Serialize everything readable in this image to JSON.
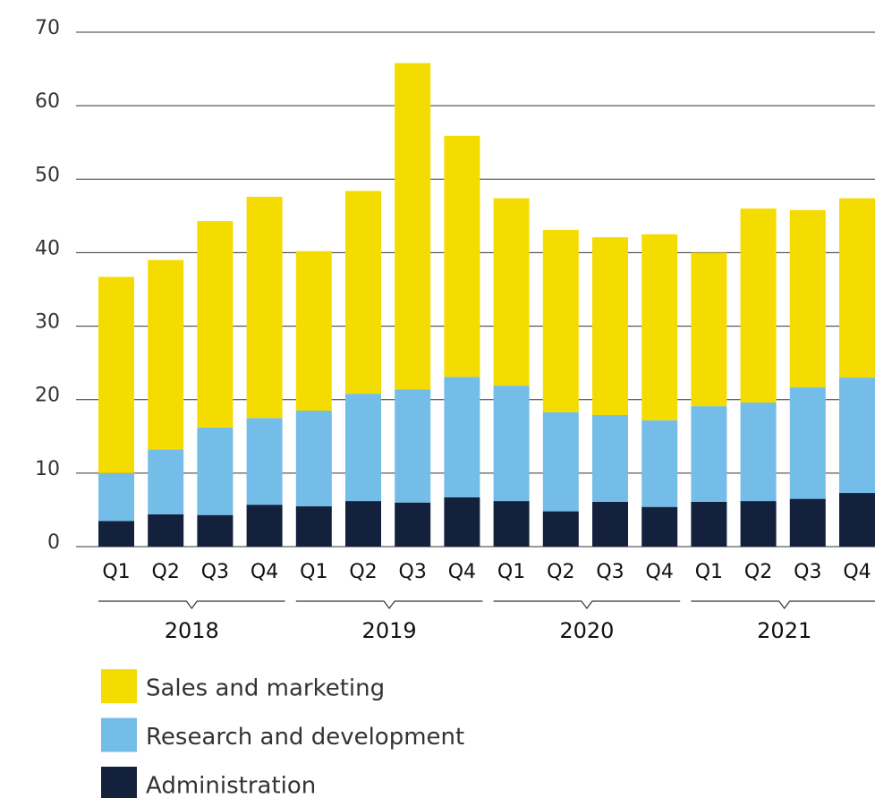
{
  "chart_data": {
    "type": "stacked_bar",
    "categories": [
      "Q1",
      "Q2",
      "Q3",
      "Q4",
      "Q1",
      "Q2",
      "Q3",
      "Q4",
      "Q1",
      "Q2",
      "Q3",
      "Q4",
      "Q1",
      "Q2",
      "Q3",
      "Q4"
    ],
    "x_groups": [
      "2018",
      "2019",
      "2020",
      "2021"
    ],
    "series": [
      {
        "name": "Administration",
        "color": "#14213d",
        "values": [
          3.5,
          4.4,
          4.3,
          5.7,
          5.5,
          6.2,
          6.0,
          6.7,
          6.2,
          4.8,
          6.1,
          5.4,
          6.1,
          6.2,
          6.5,
          7.3
        ]
      },
      {
        "name": "Research and development",
        "color": "#74bde8",
        "values": [
          6.5,
          8.8,
          11.9,
          11.8,
          13.0,
          14.6,
          15.4,
          16.4,
          15.7,
          13.5,
          11.8,
          11.8,
          13.0,
          13.4,
          15.2,
          15.7
        ]
      },
      {
        "name": "Sales and marketing",
        "color": "#f5dc00",
        "values": [
          26.7,
          25.8,
          28.1,
          30.1,
          21.7,
          27.6,
          44.4,
          32.8,
          25.5,
          24.8,
          24.2,
          25.3,
          20.9,
          26.4,
          24.1,
          24.4
        ]
      }
    ],
    "ylim": [
      0,
      70
    ],
    "yticks": [
      0,
      10,
      20,
      30,
      40,
      50,
      60,
      70
    ],
    "grid": true
  }
}
